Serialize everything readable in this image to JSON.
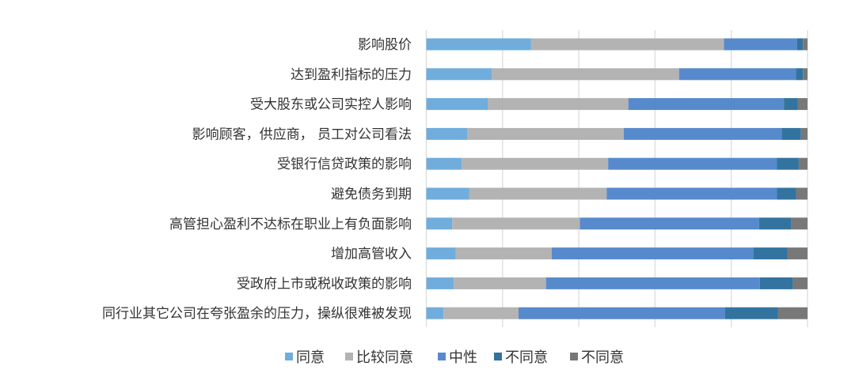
{
  "chart_data": {
    "type": "bar",
    "orientation": "horizontal",
    "stacked": "percent",
    "title": "",
    "xlabel": "",
    "ylabel": "",
    "xlim": [
      0,
      100
    ],
    "grid": true,
    "legend_position": "bottom",
    "categories": [
      "影响股价",
      "达到盈利指标的压力",
      "受大股东或公司实控人影响",
      "影响顾客，供应商，  员工对公司看法",
      "受银行信贷政策的影响",
      "避免债务到期",
      "高管担心盈利不达标在职业上有负面影响",
      "增加高管收入",
      "受政府上市或税收政策的影响",
      "同行业其它公司在夸张盈余的压力，操纵很难被发现"
    ],
    "series": [
      {
        "name": "同意",
        "color": "#70ADDC",
        "values": [
          27.5,
          17.2,
          16.1,
          10.7,
          9.3,
          11.3,
          6.8,
          7.7,
          7.2,
          4.5
        ]
      },
      {
        "name": "比较同意",
        "color": "#B3B3B3",
        "values": [
          50.6,
          49.1,
          36.9,
          41.1,
          38.4,
          36.0,
          33.5,
          25.2,
          24.2,
          19.7
        ]
      },
      {
        "name": "中性",
        "color": "#578ACC",
        "values": [
          19.2,
          30.7,
          40.8,
          41.4,
          44.3,
          44.7,
          47.0,
          52.9,
          56.1,
          54.2
        ]
      },
      {
        "name": "不同意",
        "color": "#33739F",
        "values": [
          1.5,
          1.8,
          3.6,
          5.1,
          5.7,
          5.0,
          8.5,
          8.9,
          8.7,
          13.9
        ]
      },
      {
        "name": "不同意",
        "color": "#787878",
        "values": [
          1.2,
          1.2,
          2.6,
          1.7,
          2.3,
          3.0,
          4.2,
          5.3,
          3.8,
          7.7
        ]
      }
    ]
  }
}
